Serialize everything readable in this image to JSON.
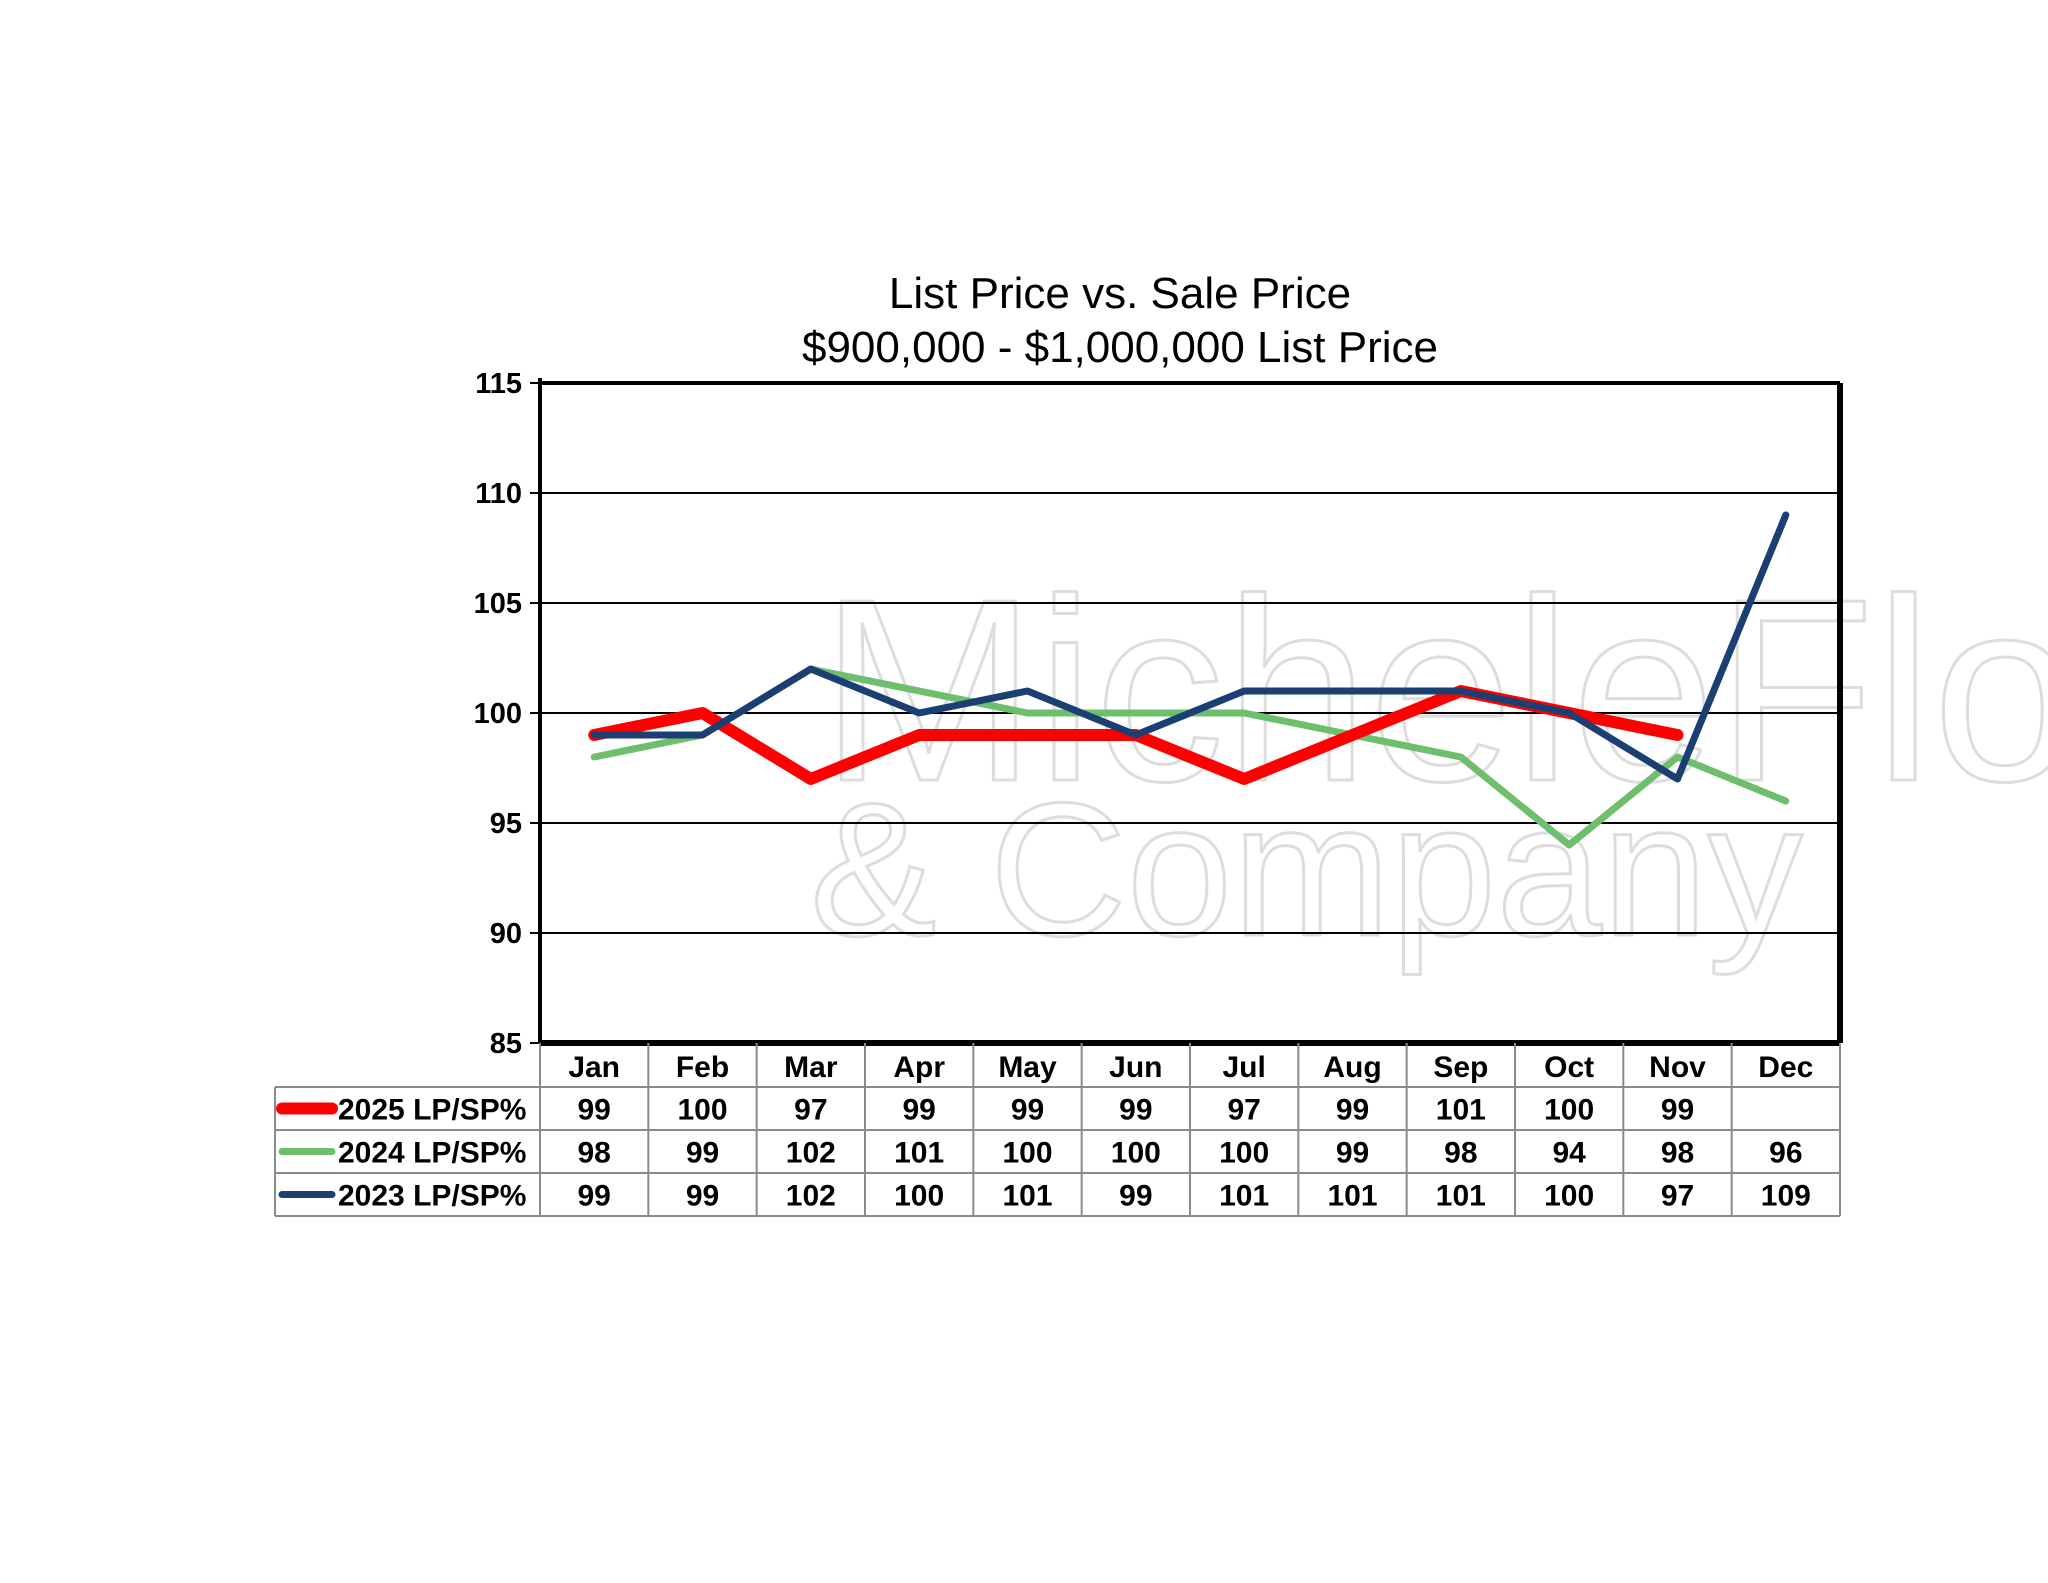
{
  "chart_data": {
    "type": "line",
    "title": "List Price vs. Sale Price",
    "subtitle": "$900,000 - $1,000,000 List Price",
    "categories": [
      "Jan",
      "Feb",
      "Mar",
      "Apr",
      "May",
      "Jun",
      "Jul",
      "Aug",
      "Sep",
      "Oct",
      "Nov",
      "Dec"
    ],
    "ylim": [
      85,
      115
    ],
    "yticks": [
      85,
      90,
      95,
      100,
      105,
      110,
      115
    ],
    "grid": true,
    "series": [
      {
        "name": "2025 LP/SP%",
        "color": "#ff0000",
        "values": [
          99,
          100,
          97,
          99,
          99,
          99,
          97,
          99,
          101,
          100,
          99,
          null
        ]
      },
      {
        "name": "2024 LP/SP%",
        "color": "#6dbf6d",
        "values": [
          98,
          99,
          102,
          101,
          100,
          100,
          100,
          99,
          98,
          94,
          98,
          96
        ]
      },
      {
        "name": "2023 LP/SP%",
        "color": "#1b3f73",
        "values": [
          99,
          99,
          102,
          100,
          101,
          99,
          101,
          101,
          101,
          100,
          97,
          109
        ]
      }
    ]
  },
  "watermark": {
    "line1": "MicheleFlory",
    "line2": "& Company"
  }
}
